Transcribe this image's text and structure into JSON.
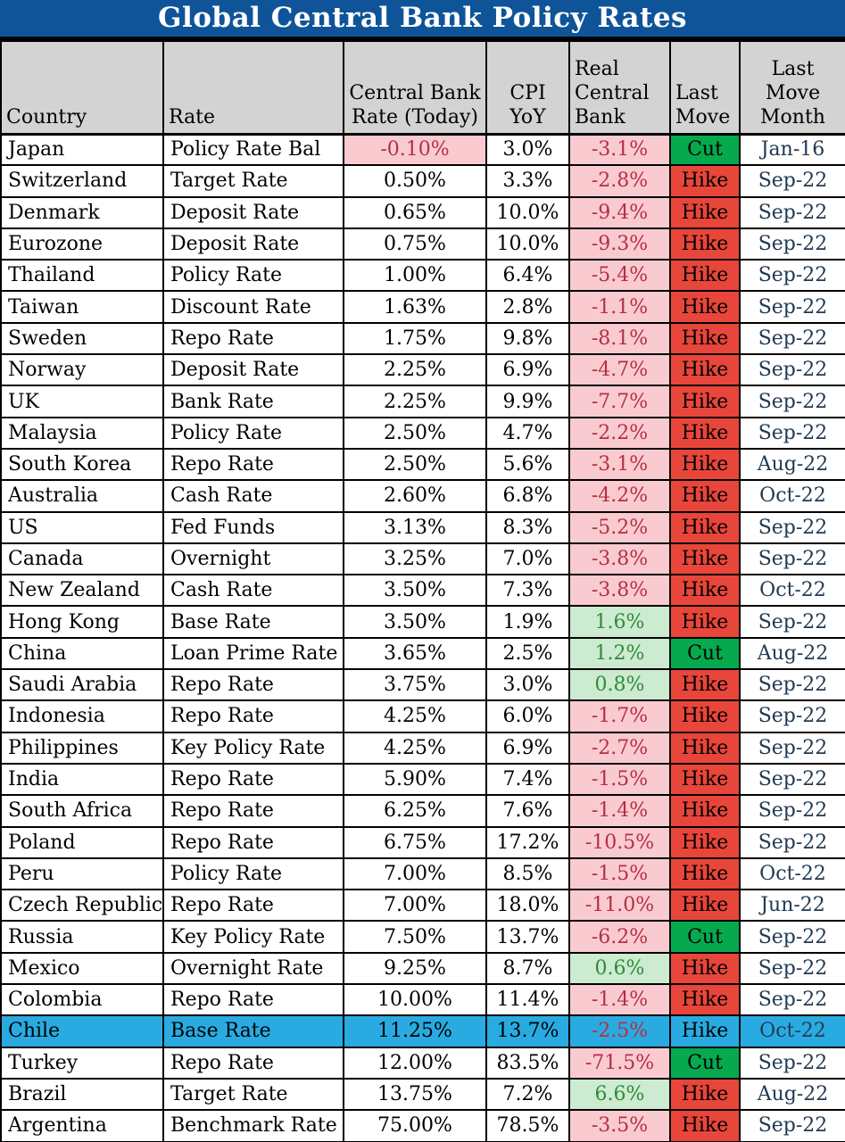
{
  "colors": {
    "title_bg": "#0f5499",
    "title_text": "#ffffff",
    "header_bg": "#d3d3d3",
    "grid": "#000000",
    "body_text": "#000000",
    "negative_bg": "#f9cbd1",
    "negative_text": "#b52f42",
    "positive_bg": "#cdebd0",
    "positive_text": "#2f8b3c",
    "hike_bg": "#e8463a",
    "cut_bg": "#07a94f",
    "move_text": "#000000",
    "highlight_bg": "#29abe2",
    "month_text": "#223a52"
  },
  "chart_data": {
    "type": "table",
    "title": "Global Central Bank Policy Rates",
    "columns": [
      "Country",
      "Rate",
      "Central Bank\nRate (Today)",
      "CPI\nYoY",
      "Real\nCentral\nBank",
      "Last\nMove",
      "Last\nMove\nMonth"
    ],
    "rows": [
      {
        "country": "Japan",
        "rate": "Policy Rate Bal",
        "cbr": "-0.10%",
        "cbr_neg": true,
        "cpi": "3.0%",
        "real": "-3.1%",
        "real_pos": false,
        "move": "Cut",
        "month": "Jan-16",
        "highlight": false
      },
      {
        "country": "Switzerland",
        "rate": "Target Rate",
        "cbr": "0.50%",
        "cbr_neg": false,
        "cpi": "3.3%",
        "real": "-2.8%",
        "real_pos": false,
        "move": "Hike",
        "month": "Sep-22",
        "highlight": false
      },
      {
        "country": "Denmark",
        "rate": "Deposit Rate",
        "cbr": "0.65%",
        "cbr_neg": false,
        "cpi": "10.0%",
        "real": "-9.4%",
        "real_pos": false,
        "move": "Hike",
        "month": "Sep-22",
        "highlight": false
      },
      {
        "country": "Eurozone",
        "rate": "Deposit Rate",
        "cbr": "0.75%",
        "cbr_neg": false,
        "cpi": "10.0%",
        "real": "-9.3%",
        "real_pos": false,
        "move": "Hike",
        "month": "Sep-22",
        "highlight": false
      },
      {
        "country": "Thailand",
        "rate": "Policy Rate",
        "cbr": "1.00%",
        "cbr_neg": false,
        "cpi": "6.4%",
        "real": "-5.4%",
        "real_pos": false,
        "move": "Hike",
        "month": "Sep-22",
        "highlight": false
      },
      {
        "country": "Taiwan",
        "rate": "Discount Rate",
        "cbr": "1.63%",
        "cbr_neg": false,
        "cpi": "2.8%",
        "real": "-1.1%",
        "real_pos": false,
        "move": "Hike",
        "month": "Sep-22",
        "highlight": false
      },
      {
        "country": "Sweden",
        "rate": "Repo Rate",
        "cbr": "1.75%",
        "cbr_neg": false,
        "cpi": "9.8%",
        "real": "-8.1%",
        "real_pos": false,
        "move": "Hike",
        "month": "Sep-22",
        "highlight": false
      },
      {
        "country": "Norway",
        "rate": "Deposit Rate",
        "cbr": "2.25%",
        "cbr_neg": false,
        "cpi": "6.9%",
        "real": "-4.7%",
        "real_pos": false,
        "move": "Hike",
        "month": "Sep-22",
        "highlight": false
      },
      {
        "country": "UK",
        "rate": "Bank Rate",
        "cbr": "2.25%",
        "cbr_neg": false,
        "cpi": "9.9%",
        "real": "-7.7%",
        "real_pos": false,
        "move": "Hike",
        "month": "Sep-22",
        "highlight": false
      },
      {
        "country": "Malaysia",
        "rate": "Policy Rate",
        "cbr": "2.50%",
        "cbr_neg": false,
        "cpi": "4.7%",
        "real": "-2.2%",
        "real_pos": false,
        "move": "Hike",
        "month": "Sep-22",
        "highlight": false
      },
      {
        "country": "South Korea",
        "rate": "Repo Rate",
        "cbr": "2.50%",
        "cbr_neg": false,
        "cpi": "5.6%",
        "real": "-3.1%",
        "real_pos": false,
        "move": "Hike",
        "month": "Aug-22",
        "highlight": false
      },
      {
        "country": "Australia",
        "rate": "Cash Rate",
        "cbr": "2.60%",
        "cbr_neg": false,
        "cpi": "6.8%",
        "real": "-4.2%",
        "real_pos": false,
        "move": "Hike",
        "month": "Oct-22",
        "highlight": false
      },
      {
        "country": "US",
        "rate": "Fed Funds",
        "cbr": "3.13%",
        "cbr_neg": false,
        "cpi": "8.3%",
        "real": "-5.2%",
        "real_pos": false,
        "move": "Hike",
        "month": "Sep-22",
        "highlight": false
      },
      {
        "country": "Canada",
        "rate": "Overnight",
        "cbr": "3.25%",
        "cbr_neg": false,
        "cpi": "7.0%",
        "real": "-3.8%",
        "real_pos": false,
        "move": "Hike",
        "month": "Sep-22",
        "highlight": false
      },
      {
        "country": "New Zealand",
        "rate": "Cash Rate",
        "cbr": "3.50%",
        "cbr_neg": false,
        "cpi": "7.3%",
        "real": "-3.8%",
        "real_pos": false,
        "move": "Hike",
        "month": "Oct-22",
        "highlight": false
      },
      {
        "country": "Hong Kong",
        "rate": "Base Rate",
        "cbr": "3.50%",
        "cbr_neg": false,
        "cpi": "1.9%",
        "real": "1.6%",
        "real_pos": true,
        "move": "Hike",
        "month": "Sep-22",
        "highlight": false
      },
      {
        "country": "China",
        "rate": "Loan Prime Rate",
        "cbr": "3.65%",
        "cbr_neg": false,
        "cpi": "2.5%",
        "real": "1.2%",
        "real_pos": true,
        "move": "Cut",
        "month": "Aug-22",
        "highlight": false
      },
      {
        "country": "Saudi Arabia",
        "rate": "Repo Rate",
        "cbr": "3.75%",
        "cbr_neg": false,
        "cpi": "3.0%",
        "real": "0.8%",
        "real_pos": true,
        "move": "Hike",
        "month": "Sep-22",
        "highlight": false
      },
      {
        "country": "Indonesia",
        "rate": "Repo Rate",
        "cbr": "4.25%",
        "cbr_neg": false,
        "cpi": "6.0%",
        "real": "-1.7%",
        "real_pos": false,
        "move": "Hike",
        "month": "Sep-22",
        "highlight": false
      },
      {
        "country": "Philippines",
        "rate": "Key Policy Rate",
        "cbr": "4.25%",
        "cbr_neg": false,
        "cpi": "6.9%",
        "real": "-2.7%",
        "real_pos": false,
        "move": "Hike",
        "month": "Sep-22",
        "highlight": false
      },
      {
        "country": "India",
        "rate": "Repo Rate",
        "cbr": "5.90%",
        "cbr_neg": false,
        "cpi": "7.4%",
        "real": "-1.5%",
        "real_pos": false,
        "move": "Hike",
        "month": "Sep-22",
        "highlight": false
      },
      {
        "country": "South Africa",
        "rate": "Repo Rate",
        "cbr": "6.25%",
        "cbr_neg": false,
        "cpi": "7.6%",
        "real": "-1.4%",
        "real_pos": false,
        "move": "Hike",
        "month": "Sep-22",
        "highlight": false
      },
      {
        "country": "Poland",
        "rate": "Repo Rate",
        "cbr": "6.75%",
        "cbr_neg": false,
        "cpi": "17.2%",
        "real": "-10.5%",
        "real_pos": false,
        "move": "Hike",
        "month": "Sep-22",
        "highlight": false
      },
      {
        "country": "Peru",
        "rate": "Policy Rate",
        "cbr": "7.00%",
        "cbr_neg": false,
        "cpi": "8.5%",
        "real": "-1.5%",
        "real_pos": false,
        "move": "Hike",
        "month": "Oct-22",
        "highlight": false
      },
      {
        "country": "Czech Republic",
        "rate": "Repo Rate",
        "cbr": "7.00%",
        "cbr_neg": false,
        "cpi": "18.0%",
        "real": "-11.0%",
        "real_pos": false,
        "move": "Hike",
        "month": "Jun-22",
        "highlight": false
      },
      {
        "country": "Russia",
        "rate": "Key Policy Rate",
        "cbr": "7.50%",
        "cbr_neg": false,
        "cpi": "13.7%",
        "real": "-6.2%",
        "real_pos": false,
        "move": "Cut",
        "month": "Sep-22",
        "highlight": false
      },
      {
        "country": "Mexico",
        "rate": "Overnight Rate",
        "cbr": "9.25%",
        "cbr_neg": false,
        "cpi": "8.7%",
        "real": "0.6%",
        "real_pos": true,
        "move": "Hike",
        "month": "Sep-22",
        "highlight": false
      },
      {
        "country": "Colombia",
        "rate": "Repo Rate",
        "cbr": "10.00%",
        "cbr_neg": false,
        "cpi": "11.4%",
        "real": "-1.4%",
        "real_pos": false,
        "move": "Hike",
        "month": "Sep-22",
        "highlight": false
      },
      {
        "country": "Chile",
        "rate": "Base Rate",
        "cbr": "11.25%",
        "cbr_neg": false,
        "cpi": "13.7%",
        "real": "-2.5%",
        "real_pos": false,
        "move": "Hike",
        "month": "Oct-22",
        "highlight": true
      },
      {
        "country": "Turkey",
        "rate": "Repo Rate",
        "cbr": "12.00%",
        "cbr_neg": false,
        "cpi": "83.5%",
        "real": "-71.5%",
        "real_pos": false,
        "move": "Cut",
        "month": "Sep-22",
        "highlight": false
      },
      {
        "country": "Brazil",
        "rate": "Target Rate",
        "cbr": "13.75%",
        "cbr_neg": false,
        "cpi": "7.2%",
        "real": "6.6%",
        "real_pos": true,
        "move": "Hike",
        "month": "Aug-22",
        "highlight": false
      },
      {
        "country": "Argentina",
        "rate": "Benchmark Rate",
        "cbr": "75.00%",
        "cbr_neg": false,
        "cpi": "78.5%",
        "real": "-3.5%",
        "real_pos": false,
        "move": "Hike",
        "month": "Sep-22",
        "highlight": false
      }
    ]
  }
}
